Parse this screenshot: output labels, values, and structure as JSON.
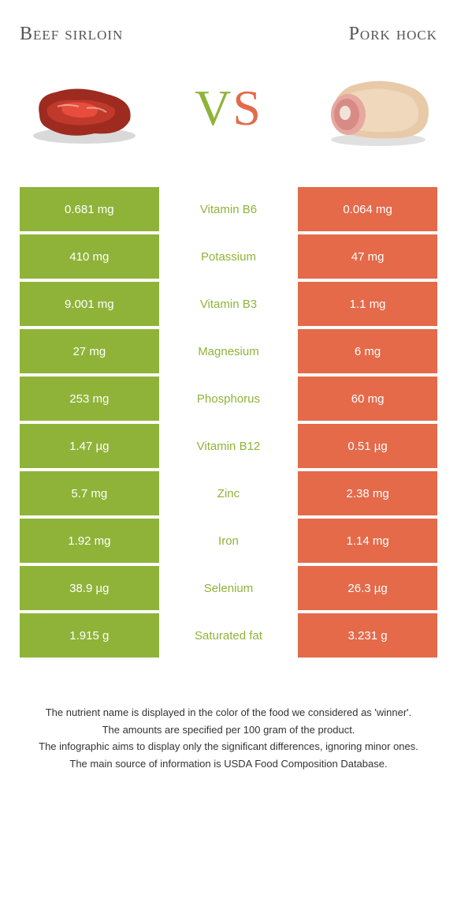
{
  "header": {
    "left": "Beef sirloin",
    "right": "Pork hock"
  },
  "vs": {
    "v": "V",
    "s": "S"
  },
  "colors": {
    "green": "#8fb339",
    "orange": "#e46a4a",
    "background": "#ffffff",
    "text": "#333333"
  },
  "rows": [
    {
      "left": "0.681 mg",
      "label": "Vitamin B6",
      "winner": "green",
      "right": "0.064 mg"
    },
    {
      "left": "410 mg",
      "label": "Potassium",
      "winner": "green",
      "right": "47 mg"
    },
    {
      "left": "9.001 mg",
      "label": "Vitamin B3",
      "winner": "green",
      "right": "1.1 mg"
    },
    {
      "left": "27 mg",
      "label": "Magnesium",
      "winner": "green",
      "right": "6 mg"
    },
    {
      "left": "253 mg",
      "label": "Phosphorus",
      "winner": "green",
      "right": "60 mg"
    },
    {
      "left": "1.47 µg",
      "label": "Vitamin B12",
      "winner": "green",
      "right": "0.51 µg"
    },
    {
      "left": "5.7 mg",
      "label": "Zinc",
      "winner": "green",
      "right": "2.38 mg"
    },
    {
      "left": "1.92 mg",
      "label": "Iron",
      "winner": "green",
      "right": "1.14 mg"
    },
    {
      "left": "38.9 µg",
      "label": "Selenium",
      "winner": "green",
      "right": "26.3 µg"
    },
    {
      "left": "1.915 g",
      "label": "Saturated fat",
      "winner": "green",
      "right": "3.231 g"
    }
  ],
  "footnotes": [
    "The nutrient name is displayed in the color of the food we considered as 'winner'.",
    "The amounts are specified per 100 gram of the product.",
    "The infographic aims to display only the significant differences, ignoring minor ones.",
    "The main source of information is USDA Food Composition Database."
  ]
}
